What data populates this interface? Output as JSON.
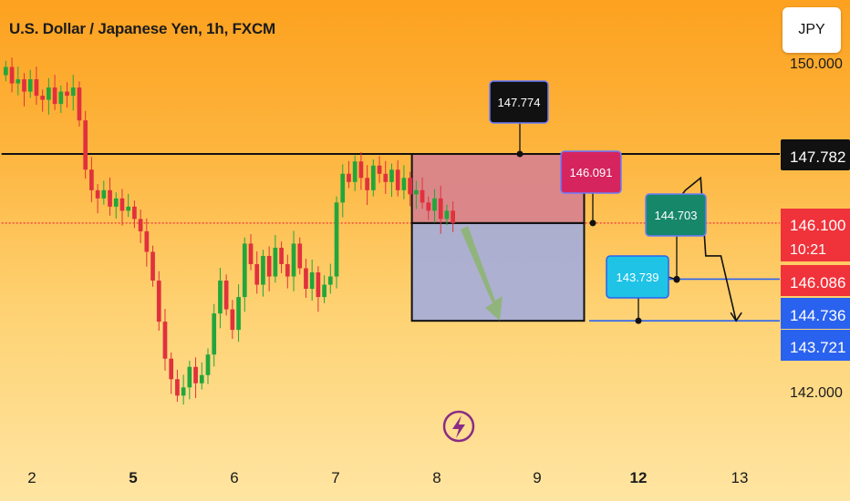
{
  "header": {
    "title": "U.S. Dollar / Japanese Yen, 1h, FXCM"
  },
  "currency_button": {
    "label": "JPY"
  },
  "colors": {
    "up": "#22a63c",
    "down": "#e0313d",
    "zone_top": "#d9848c",
    "zone_bottom": "#a9aed6",
    "blue_line": "#2a62f0",
    "red_line": "#f0323a",
    "arrow_green": "#8cb56e"
  },
  "chart_data": {
    "type": "candlestick",
    "symbol": "U.S. Dollar / Japanese Yen, 1h, FXCM",
    "ylim": [
      141.2,
      150.4
    ],
    "xlim": [
      1.7,
      14.1
    ],
    "x_ticks": [
      "2",
      "5",
      "6",
      "7",
      "8",
      "9",
      "12",
      "13"
    ],
    "y_ticks": [
      {
        "value": 150.0,
        "label": "150.000"
      },
      {
        "value": 142.0,
        "label": "142.000"
      }
    ],
    "price_labels": [
      {
        "value": 147.782,
        "label": "147.782",
        "style": "black"
      },
      {
        "value": 146.1,
        "label": "146.100",
        "sublabel": "10:21",
        "style": "red"
      },
      {
        "value": 146.086,
        "label": "146.086",
        "style": "red"
      },
      {
        "value": 144.736,
        "label": "144.736",
        "style": "blue"
      },
      {
        "value": 143.721,
        "label": "143.721",
        "style": "blue"
      }
    ],
    "horizontal_lines": [
      {
        "value": 147.782,
        "color": "black",
        "from_day": 1.7
      },
      {
        "value": 146.1,
        "color": "red-dotted",
        "from_day": 1.7
      },
      {
        "value": 144.736,
        "color": "blue",
        "from_day": 8.15
      },
      {
        "value": 143.721,
        "color": "blue",
        "from_day": 7.5
      }
    ],
    "zones": [
      {
        "from_day": 5.75,
        "to_day": 7.45,
        "top": 147.782,
        "bottom": 146.1,
        "type": "supply"
      },
      {
        "from_day": 5.75,
        "to_day": 7.45,
        "top": 146.1,
        "bottom": 143.721,
        "type": "demand"
      }
    ],
    "annotations": [
      {
        "label": "147.774",
        "value": 147.774,
        "day": 8.8,
        "style": "black"
      },
      {
        "label": "146.091",
        "value": 146.091,
        "day": 9.6,
        "style": "red"
      },
      {
        "label": "144.703",
        "value": 144.703,
        "day": 12.4,
        "style": "teal"
      },
      {
        "label": "143.739",
        "value": 143.739,
        "day": 12.0,
        "style": "cyan"
      }
    ],
    "projection": [
      [
        8.2,
        146.1
      ],
      [
        8.45,
        146.9
      ],
      [
        8.6,
        147.2
      ],
      [
        8.65,
        145.3
      ],
      [
        8.8,
        145.3
      ],
      [
        8.95,
        143.721
      ]
    ],
    "candles_close": [
      149.9,
      149.5,
      149.6,
      149.3,
      149.6,
      149.2,
      149.1,
      149.4,
      149.0,
      149.3,
      149.2,
      149.4,
      148.6,
      147.4,
      146.9,
      146.7,
      146.9,
      146.5,
      146.7,
      146.4,
      146.5,
      146.2,
      145.9,
      145.4,
      144.7,
      143.7,
      142.8,
      142.3,
      141.9,
      142.1,
      142.6,
      142.2,
      142.4,
      142.9,
      143.9,
      144.7,
      144.0,
      143.5,
      144.3,
      145.6,
      145.1,
      144.6,
      145.3,
      144.8,
      145.5,
      145.1,
      144.8,
      145.6,
      145.0,
      144.5,
      144.9,
      144.3,
      144.6,
      144.8,
      146.6,
      147.3,
      147.1,
      147.6,
      147.2,
      146.9,
      147.5,
      147.3,
      147.1,
      147.4,
      146.9,
      147.2,
      146.8,
      146.9,
      146.6,
      146.4,
      146.7,
      146.2,
      146.4,
      146.1
    ]
  }
}
